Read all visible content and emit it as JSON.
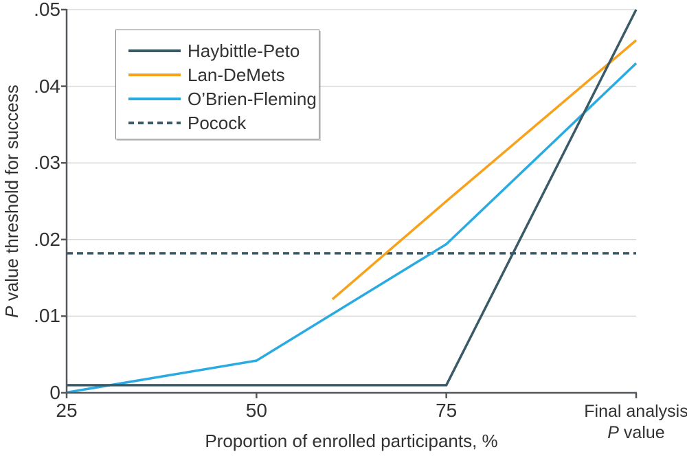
{
  "figure": {
    "background": "#ffffff",
    "text_color": "#323232",
    "axis_color": "#55585b",
    "grid_color": "#d9d9d9",
    "legend_border_color": "#7c7c7c"
  },
  "chart_data": {
    "type": "line",
    "title": "",
    "xlabel": "Proportion of enrolled participants, %",
    "ylabel_full": "P value threshold for success",
    "ylabel_italic": "P",
    "ylabel_rest": " value threshold for success",
    "x_range": [
      25,
      100
    ],
    "y_range": [
      0,
      0.05
    ],
    "grid": "horizontal",
    "legend_position": "top-left",
    "x_ticks": [
      {
        "pos": 25,
        "label": "25"
      },
      {
        "pos": 50,
        "label": "50"
      },
      {
        "pos": 75,
        "label": "75"
      },
      {
        "pos": 100,
        "label": "Final analysis",
        "sub_italic": "P",
        "sub_rest": " value"
      }
    ],
    "y_ticks": [
      {
        "value": 0,
        "label": "0"
      },
      {
        "value": 0.01,
        "label": ".01"
      },
      {
        "value": 0.02,
        "label": ".02"
      },
      {
        "value": 0.03,
        "label": ".03"
      },
      {
        "value": 0.04,
        "label": ".04"
      },
      {
        "value": 0.05,
        "label": ".05"
      }
    ],
    "series": [
      {
        "name": "Haybittle-Peto",
        "color": "#3a5a68",
        "line_style": "solid",
        "points": [
          [
            25,
            0.001
          ],
          [
            75,
            0.001
          ],
          [
            100,
            0.05
          ]
        ]
      },
      {
        "name": "Lan-DeMets",
        "color": "#f8a11b",
        "line_style": "solid",
        "points": [
          [
            60,
            0.0122
          ],
          [
            75,
            0.025
          ],
          [
            100,
            0.046
          ]
        ]
      },
      {
        "name": "O’Brien-Fleming",
        "color": "#29abe2",
        "line_style": "solid",
        "points": [
          [
            25,
            5e-05
          ],
          [
            50,
            0.0042
          ],
          [
            75,
            0.0194
          ],
          [
            100,
            0.043
          ]
        ]
      },
      {
        "name": "Pocock",
        "color": "#3a5a68",
        "line_style": "dashed",
        "points": [
          [
            25,
            0.0182
          ],
          [
            100,
            0.0182
          ]
        ]
      }
    ]
  }
}
